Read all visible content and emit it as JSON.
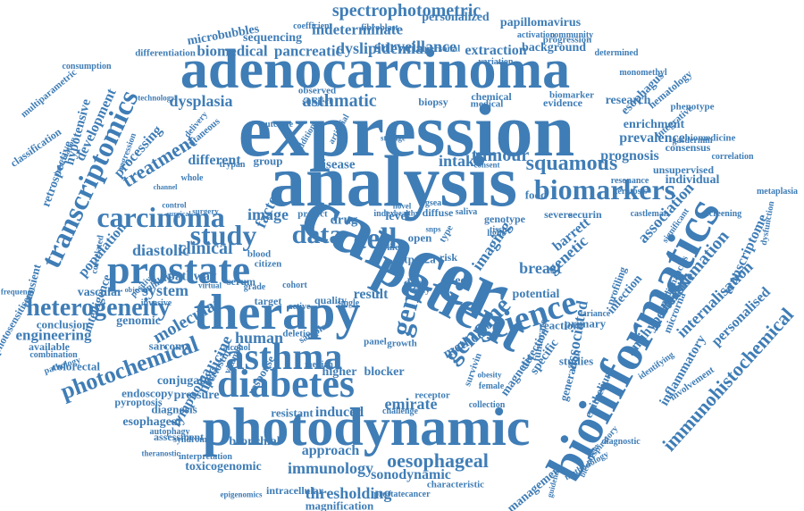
{
  "colors": {
    "word": "#3f7db6",
    "background": "#ffffff"
  },
  "words": [
    "cancer",
    "expression",
    "analysis",
    "adenocarcinoma",
    "photodynamic",
    "patient",
    "therapy",
    "bioinformatics",
    "diabetes",
    "prostate",
    "asthma",
    "science",
    "carcinoma",
    "biomarkers",
    "transcriptomics",
    "heterogeneity",
    "photochemical",
    "immunohistochemical",
    "study",
    "data",
    "cell",
    "genome",
    "gene",
    "squamous",
    "oesophageal",
    "spectrophotometric",
    "indeterminate",
    "dyslipidemia",
    "biomedical",
    "pancreatic",
    "surveillance",
    "extraction",
    "papillomavirus",
    "personalized",
    "sequencing",
    "background",
    "progression",
    "asthmatic",
    "dysplasia",
    "treatment",
    "processing",
    "development",
    "hypotensive",
    "retrospective",
    "transcriptome",
    "inflammation",
    "association",
    "antihypertensive",
    "inflammatory",
    "internalisation",
    "personalised",
    "esophagus",
    "prevalence",
    "enrichment",
    "tumour",
    "intake",
    "prognosis",
    "research",
    "consensus",
    "individual",
    "different",
    "group",
    "factor",
    "image",
    "clinical",
    "pathway",
    "disease",
    "drug",
    "level",
    "system",
    "diastolic",
    "population",
    "molecular",
    "medicine",
    "lymphoma",
    "engineering",
    "human",
    "result",
    "imaging",
    "genetic",
    "barrett",
    "breast",
    "potential",
    "method",
    "magnetic",
    "associated",
    "specific",
    "detection",
    "emirate",
    "induced",
    "resistant",
    "higher",
    "blocker",
    "thresholding",
    "sonodynamic",
    "immunology",
    "bronchial",
    "approach",
    "toxicogenomic",
    "assessment",
    "esophageal",
    "diagnosis",
    "pressure",
    "conjugate",
    "endoscopy",
    "pyroptosis",
    "colorectal",
    "pathology",
    "combination",
    "available",
    "conclusion",
    "genomic",
    "vascular",
    "sarcoma",
    "transient",
    "photosensitisers",
    "classification",
    "multiparametric",
    "microbubbles",
    "differentiation",
    "coefficient",
    "fibroblast",
    "monomethyl",
    "metaplasia",
    "primary",
    "studies",
    "management",
    "magnification",
    "prostatecancer",
    "intracellular",
    "characteristic",
    "epigenomics",
    "interpretation",
    "autophagy",
    "syndrome",
    "theranostic",
    "target",
    "quality",
    "deletion",
    "serum",
    "virtual",
    "cutaneous",
    "delivery",
    "regression",
    "frequency",
    "infection",
    "severe",
    "securin",
    "profiling",
    "microrna",
    "fumarate",
    "receptor",
    "survivin",
    "challenge",
    "response",
    "vitamin",
    "periostin",
    "median",
    "reaction",
    "generation",
    "involvement",
    "identifying",
    "diagnostic",
    "methodology",
    "guideline",
    "collection",
    "biomarker",
    "evidence",
    "observed",
    "subject",
    "biopsy",
    "chemical",
    "medical",
    "variation",
    "personal",
    "activation",
    "community",
    "determined",
    "hematology",
    "integrative",
    "phenotype",
    "gasdermin",
    "biomedicine",
    "correlation",
    "unsupervised",
    "resonance",
    "keratosis",
    "screening",
    "castleman",
    "significant",
    "dysfunction",
    "malignancies",
    "genotype",
    "saliva",
    "tissue",
    "diffuse",
    "open",
    "type",
    "tpcs2a",
    "risk",
    "food",
    "project",
    "blood",
    "citizen",
    "trypan",
    "whole",
    "control",
    "inhibitor",
    "positive",
    "invasive",
    "objective",
    "surgical",
    "channel",
    "technology",
    "consumption",
    "information",
    "correlated",
    "intelligence",
    "surgery",
    "healthy",
    "storage",
    "consent",
    "dose",
    "body",
    "effect",
    "panel",
    "growth",
    "epithelium",
    "respiratory",
    "bleomycin",
    "variance",
    "light",
    "index",
    "novel",
    "gsea",
    "life",
    "cohort",
    "grade",
    "outcome",
    "addition",
    "artificial",
    "sample",
    "alcohol",
    "active",
    "single",
    "obesity",
    "female",
    "snps"
  ]
}
